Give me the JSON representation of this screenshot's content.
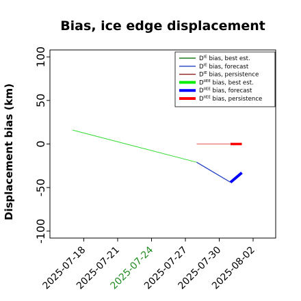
{
  "chart_data": {
    "type": "line",
    "title": "Bias, ice edge displacement",
    "xlabel": "",
    "ylabel": "Displacement bias (km)",
    "ylim": [
      -108,
      108
    ],
    "yticks": [
      -100,
      -50,
      0,
      50,
      100
    ],
    "xlim": [
      "2025-07-15",
      "2025-08-04"
    ],
    "xticks": [
      "2025-07-18",
      "2025-07-21",
      "2025-07-24",
      "2025-07-27",
      "2025-07-30",
      "2025-08-02"
    ],
    "highlight_tick": "2025-07-24",
    "highlight_tick_color": "#228b22",
    "grid": false,
    "legend_position": "upper right",
    "legend": [
      {
        "label_prefix": "D",
        "label_sup": "IE",
        "label_suffix": " bias, best est.",
        "color": "#1b7a1b",
        "style": "thin"
      },
      {
        "label_prefix": "D",
        "label_sup": "IE",
        "label_suffix": " bias, forecast",
        "color": "#1f3fbf",
        "style": "thin"
      },
      {
        "label_prefix": "D",
        "label_sup": "IE",
        "label_suffix": " bias, persistence",
        "color": "#8b1a1a",
        "style": "thin"
      },
      {
        "label_prefix": "D",
        "label_sup": "IIEE",
        "label_suffix": " bias, best est.",
        "color": "#00ee00",
        "style": "thick"
      },
      {
        "label_prefix": "D",
        "label_sup": "IIEE",
        "label_suffix": " bias, forecast",
        "color": "#0000ff",
        "style": "thick"
      },
      {
        "label_prefix": "D",
        "label_sup": "IIEE",
        "label_suffix": " bias, persistence",
        "color": "#ff0000",
        "style": "thick"
      }
    ],
    "series": [
      {
        "key": "best_est_thin",
        "color": "#33dd33",
        "width": 1,
        "points": [
          [
            "2025-07-17",
            16
          ],
          [
            "2025-07-28",
            -21
          ]
        ]
      },
      {
        "key": "forecast_thin",
        "color": "#1f3fbf",
        "width": 1.3,
        "points": [
          [
            "2025-07-28",
            -21
          ],
          [
            "2025-07-31",
            -44
          ]
        ]
      },
      {
        "key": "persistence_thin",
        "color": "#f07070",
        "width": 1.3,
        "points": [
          [
            "2025-07-28",
            0
          ],
          [
            "2025-07-31",
            0
          ]
        ]
      },
      {
        "key": "persistence_thick",
        "color": "#ff0000",
        "width": 3.5,
        "points": [
          [
            "2025-07-31",
            0
          ],
          [
            "2025-08-01",
            0
          ]
        ]
      },
      {
        "key": "forecast_thick",
        "color": "#0000ff",
        "width": 4,
        "points": [
          [
            "2025-07-31",
            -44
          ],
          [
            "2025-08-01",
            -33
          ]
        ]
      }
    ]
  }
}
